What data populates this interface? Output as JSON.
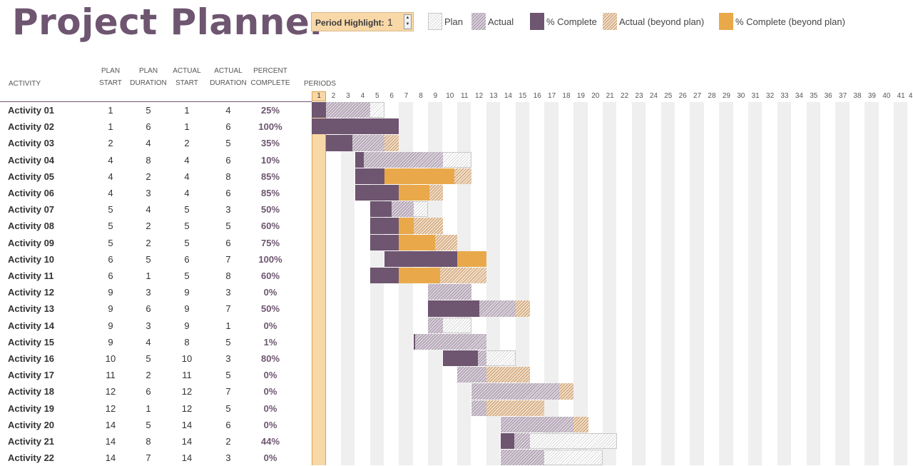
{
  "title": "Project Planner",
  "period_highlight": {
    "label": "Period Highlight:",
    "value": "1",
    "spin_up": "▲",
    "spin_down": "▼"
  },
  "legend": [
    {
      "label": "Plan",
      "kind": "plan"
    },
    {
      "label": "Actual",
      "kind": "actual"
    },
    {
      "label": "% Complete",
      "kind": "pc"
    },
    {
      "label": "Actual (beyond plan)",
      "kind": "beyond"
    },
    {
      "label": "% Complete (beyond plan)",
      "kind": "pcb"
    }
  ],
  "headers": {
    "activity": "ACTIVITY",
    "plan_start": "PLAN\nSTART",
    "plan_duration": "PLAN\nDURATION",
    "actual_start": "ACTUAL\nSTART",
    "actual_duration": "ACTUAL\nDURATION",
    "percent_complete": "PERCENT\nCOMPLETE",
    "periods": "PERIODS"
  },
  "periods": [
    "1",
    "2",
    "3",
    "4",
    "5",
    "6",
    "7",
    "8",
    "9",
    "10",
    "11",
    "12",
    "13",
    "14",
    "15",
    "16",
    "17",
    "18",
    "19",
    "20",
    "21",
    "22",
    "23",
    "24",
    "25",
    "26",
    "27",
    "28",
    "29",
    "30",
    "31",
    "32",
    "33",
    "34",
    "35",
    "36",
    "37",
    "38",
    "39",
    "40",
    "41",
    "4"
  ],
  "highlight_period": 1,
  "colors": {
    "accent": "#6e5570",
    "highlight": "#f9d8a8",
    "pc": "#6e5570",
    "pcb": "#e9a94a"
  },
  "activities": [
    {
      "name": "Activity 01",
      "plan_start": 1,
      "plan_duration": 5,
      "actual_start": 1,
      "actual_duration": 4,
      "percent": "25%"
    },
    {
      "name": "Activity 02",
      "plan_start": 1,
      "plan_duration": 6,
      "actual_start": 1,
      "actual_duration": 6,
      "percent": "100%"
    },
    {
      "name": "Activity 03",
      "plan_start": 2,
      "plan_duration": 4,
      "actual_start": 2,
      "actual_duration": 5,
      "percent": "35%"
    },
    {
      "name": "Activity 04",
      "plan_start": 4,
      "plan_duration": 8,
      "actual_start": 4,
      "actual_duration": 6,
      "percent": "10%"
    },
    {
      "name": "Activity 05",
      "plan_start": 4,
      "plan_duration": 2,
      "actual_start": 4,
      "actual_duration": 8,
      "percent": "85%"
    },
    {
      "name": "Activity 06",
      "plan_start": 4,
      "plan_duration": 3,
      "actual_start": 4,
      "actual_duration": 6,
      "percent": "85%"
    },
    {
      "name": "Activity 07",
      "plan_start": 5,
      "plan_duration": 4,
      "actual_start": 5,
      "actual_duration": 3,
      "percent": "50%"
    },
    {
      "name": "Activity 08",
      "plan_start": 5,
      "plan_duration": 2,
      "actual_start": 5,
      "actual_duration": 5,
      "percent": "60%"
    },
    {
      "name": "Activity 09",
      "plan_start": 5,
      "plan_duration": 2,
      "actual_start": 5,
      "actual_duration": 6,
      "percent": "75%"
    },
    {
      "name": "Activity 10",
      "plan_start": 6,
      "plan_duration": 5,
      "actual_start": 6,
      "actual_duration": 7,
      "percent": "100%"
    },
    {
      "name": "Activity 11",
      "plan_start": 6,
      "plan_duration": 1,
      "actual_start": 5,
      "actual_duration": 8,
      "percent": "60%"
    },
    {
      "name": "Activity 12",
      "plan_start": 9,
      "plan_duration": 3,
      "actual_start": 9,
      "actual_duration": 3,
      "percent": "0%"
    },
    {
      "name": "Activity 13",
      "plan_start": 9,
      "plan_duration": 6,
      "actual_start": 9,
      "actual_duration": 7,
      "percent": "50%"
    },
    {
      "name": "Activity 14",
      "plan_start": 9,
      "plan_duration": 3,
      "actual_start": 9,
      "actual_duration": 1,
      "percent": "0%"
    },
    {
      "name": "Activity 15",
      "plan_start": 9,
      "plan_duration": 4,
      "actual_start": 8,
      "actual_duration": 5,
      "percent": "1%"
    },
    {
      "name": "Activity 16",
      "plan_start": 10,
      "plan_duration": 5,
      "actual_start": 10,
      "actual_duration": 3,
      "percent": "80%"
    },
    {
      "name": "Activity 17",
      "plan_start": 11,
      "plan_duration": 2,
      "actual_start": 11,
      "actual_duration": 5,
      "percent": "0%"
    },
    {
      "name": "Activity 18",
      "plan_start": 12,
      "plan_duration": 6,
      "actual_start": 12,
      "actual_duration": 7,
      "percent": "0%"
    },
    {
      "name": "Activity 19",
      "plan_start": 12,
      "plan_duration": 1,
      "actual_start": 12,
      "actual_duration": 5,
      "percent": "0%"
    },
    {
      "name": "Activity 20",
      "plan_start": 14,
      "plan_duration": 5,
      "actual_start": 14,
      "actual_duration": 6,
      "percent": "0%"
    },
    {
      "name": "Activity 21",
      "plan_start": 14,
      "plan_duration": 8,
      "actual_start": 14,
      "actual_duration": 2,
      "percent": "44%"
    },
    {
      "name": "Activity 22",
      "plan_start": 14,
      "plan_duration": 7,
      "actual_start": 14,
      "actual_duration": 3,
      "percent": "0%"
    }
  ]
}
